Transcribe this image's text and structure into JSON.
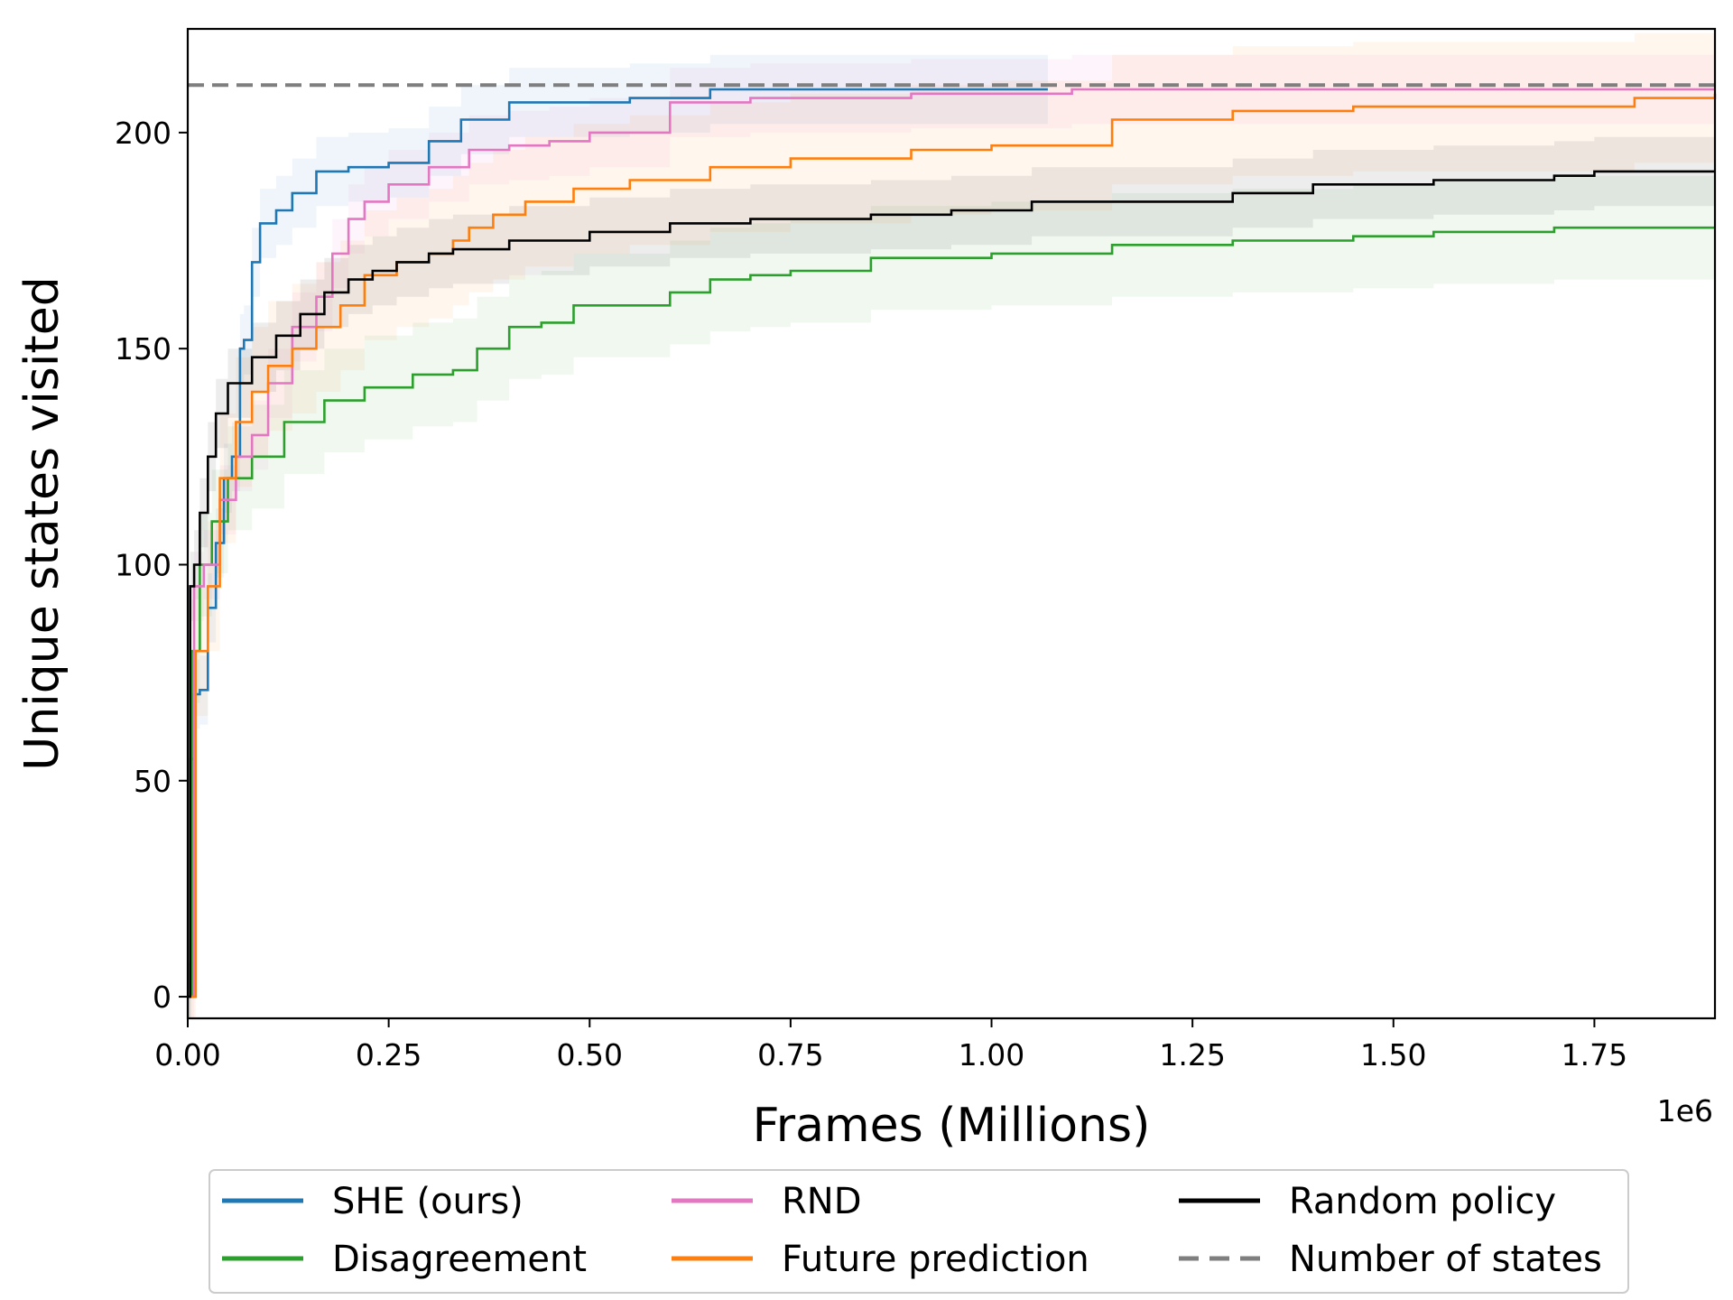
{
  "chart_data": {
    "type": "line",
    "xlabel": "Frames (Millions)",
    "ylabel": "Unique states visited",
    "x_offset_label": "1e6",
    "xlim": [
      0,
      1900000
    ],
    "ylim": [
      -5,
      224
    ],
    "x_ticks": [
      0,
      250000,
      500000,
      750000,
      1000000,
      1250000,
      1500000,
      1750000
    ],
    "x_tick_labels": [
      "0.00",
      "0.25",
      "0.50",
      "0.75",
      "1.00",
      "1.25",
      "1.50",
      "1.75"
    ],
    "y_ticks": [
      0,
      50,
      100,
      150,
      200
    ],
    "y_tick_labels": [
      "0",
      "50",
      "100",
      "150",
      "200"
    ],
    "grid": false,
    "legend_position": "bottom",
    "reference_line": {
      "name": "Number of states",
      "y": 211,
      "color": "#7f7f7f",
      "style": "dashed"
    },
    "series": [
      {
        "name": "SHE (ours)",
        "color": "#1f77b4",
        "band": 8,
        "x": [
          0,
          3000,
          8000,
          15000,
          25000,
          35000,
          45000,
          55000,
          65000,
          70000,
          80000,
          90000,
          110000,
          130000,
          160000,
          200000,
          250000,
          300000,
          340000,
          400000,
          450000,
          550000,
          650000,
          800000,
          1000000,
          1070000
        ],
        "y": [
          0,
          55,
          70,
          71,
          90,
          105,
          120,
          125,
          150,
          152,
          170,
          179,
          182,
          186,
          191,
          192,
          193,
          198,
          203,
          207,
          207,
          208,
          210,
          210,
          210,
          210
        ]
      },
      {
        "name": "Disagreement",
        "color": "#2ca02c",
        "band": 12,
        "x": [
          0,
          5000,
          15000,
          30000,
          50000,
          80000,
          120000,
          170000,
          220000,
          280000,
          330000,
          360000,
          400000,
          440000,
          480000,
          550000,
          600000,
          650000,
          700000,
          750000,
          850000,
          1000000,
          1150000,
          1300000,
          1450000,
          1550000,
          1700000,
          1900000
        ],
        "y": [
          0,
          80,
          100,
          110,
          120,
          125,
          133,
          138,
          141,
          144,
          145,
          150,
          155,
          156,
          160,
          160,
          163,
          166,
          167,
          168,
          171,
          172,
          174,
          175,
          176,
          177,
          178,
          178
        ]
      },
      {
        "name": "RND",
        "color": "#e377c2",
        "band": 8,
        "x": [
          0,
          8000,
          20000,
          40000,
          60000,
          80000,
          100000,
          130000,
          160000,
          180000,
          200000,
          220000,
          250000,
          300000,
          350000,
          400000,
          450000,
          500000,
          600000,
          700000,
          900000,
          1100000,
          1400000,
          1900000
        ],
        "y": [
          0,
          95,
          100,
          115,
          125,
          130,
          142,
          155,
          162,
          172,
          180,
          184,
          188,
          192,
          196,
          197,
          198,
          200,
          207,
          208,
          209,
          210,
          210,
          210
        ]
      },
      {
        "name": "Future prediction",
        "color": "#ff7f0e",
        "band": 15,
        "x": [
          0,
          10000,
          25000,
          40000,
          60000,
          80000,
          100000,
          130000,
          160000,
          190000,
          220000,
          260000,
          300000,
          330000,
          350000,
          380000,
          420000,
          480000,
          550000,
          650000,
          750000,
          900000,
          1000000,
          1150000,
          1300000,
          1450000,
          1600000,
          1800000,
          1900000
        ],
        "y": [
          0,
          80,
          95,
          120,
          133,
          140,
          146,
          150,
          155,
          160,
          167,
          170,
          172,
          175,
          178,
          181,
          184,
          187,
          189,
          192,
          194,
          196,
          197,
          203,
          205,
          206,
          206,
          208,
          209
        ]
      },
      {
        "name": "Random policy",
        "color": "#000000",
        "band": 8,
        "x": [
          0,
          3000,
          8000,
          15000,
          25000,
          35000,
          50000,
          80000,
          110000,
          140000,
          170000,
          200000,
          230000,
          260000,
          300000,
          330000,
          400000,
          500000,
          600000,
          700000,
          850000,
          950000,
          1050000,
          1150000,
          1300000,
          1400000,
          1550000,
          1700000,
          1750000,
          1900000
        ],
        "y": [
          0,
          95,
          100,
          112,
          125,
          135,
          142,
          148,
          153,
          158,
          163,
          166,
          168,
          170,
          172,
          173,
          175,
          177,
          179,
          180,
          181,
          182,
          184,
          184,
          186,
          188,
          189,
          190,
          191,
          191
        ]
      }
    ]
  },
  "legend": [
    {
      "label": "SHE (ours)",
      "color": "#1f77b4",
      "style": "solid"
    },
    {
      "label": "RND",
      "color": "#e377c2",
      "style": "solid"
    },
    {
      "label": "Random policy",
      "color": "#000000",
      "style": "solid"
    },
    {
      "label": "Disagreement",
      "color": "#2ca02c",
      "style": "solid"
    },
    {
      "label": "Future prediction",
      "color": "#ff7f0e",
      "style": "solid"
    },
    {
      "label": "Number of states",
      "color": "#7f7f7f",
      "style": "dashed"
    }
  ]
}
